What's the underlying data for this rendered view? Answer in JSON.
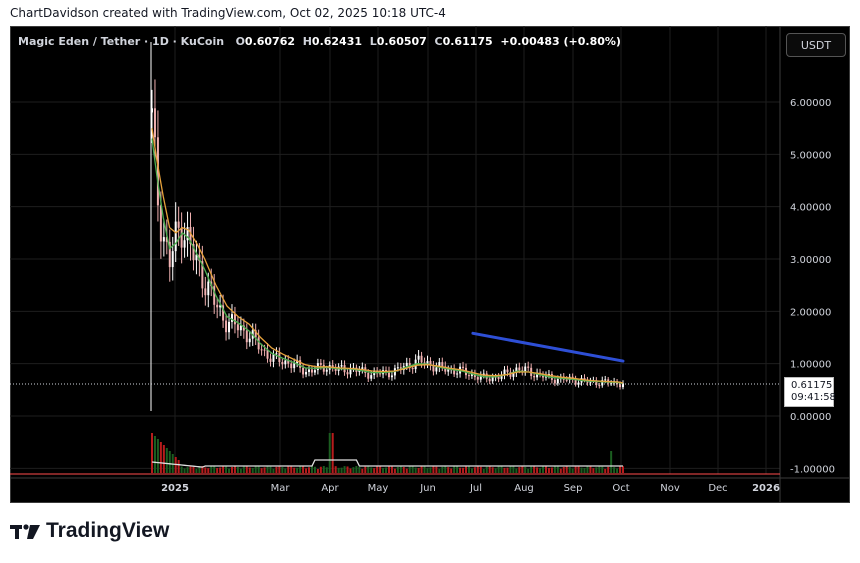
{
  "caption": "ChartDavidson created with TradingView.com, Oct 02, 2025 10:18 UTC-4",
  "legend": {
    "symbol": "Magic Eden / Tether · 1D · KuCoin",
    "open_label": "O",
    "open": "0.60762",
    "high_label": "H",
    "high": "0.62431",
    "low_label": "L",
    "low": "0.60507",
    "close_label": "C",
    "close": "0.61175",
    "change": "+0.00483 (+0.80%)"
  },
  "currency_button": "USDT",
  "last_price": {
    "price": "0.61175",
    "countdown": "09:41:58"
  },
  "brand": {
    "name": "TradingView"
  },
  "colors": {
    "background": "#000000",
    "candle_up": "#ffffff",
    "candle_down": "#f0b0b0",
    "ma_fast": "#4caf50",
    "ma_slow": "#e6a23c",
    "trendline": "#2e4fd6",
    "volume_down": "#b71c1c",
    "volume_up": "#1b5e20",
    "volume_ma": "#e0e0e0",
    "panel_separator": "#ff4d4d"
  },
  "chart_data": {
    "type": "candlestick",
    "xlabels": [
      "2025",
      "Mar",
      "Apr",
      "May",
      "Jun",
      "Jul",
      "Aug",
      "Sep",
      "Oct",
      "Nov",
      "Dec",
      "2026"
    ],
    "ylabels": [
      "6.00000",
      "5.00000",
      "4.00000",
      "3.00000",
      "2.00000",
      "1.00000",
      "0.00000",
      "-1.00000"
    ],
    "ylim": [
      -1,
      6.5
    ],
    "price_series": {
      "dates": [
        "Dec 11",
        "Dec 14",
        "Dec 18",
        "Dec 22",
        "Dec 26",
        "Dec 30",
        "Jan 03",
        "Jan 08",
        "Jan 13",
        "Jan 20",
        "Jan 27",
        "Feb 03",
        "Feb 10",
        "Feb 17",
        "Feb 24",
        "Mar 03",
        "Mar 10",
        "Mar 17",
        "Mar 24",
        "Mar 31",
        "Apr 07",
        "Apr 14",
        "Apr 21",
        "Apr 28",
        "May 05",
        "May 12",
        "May 19",
        "May 26",
        "Jun 02",
        "Jun 09",
        "Jun 16",
        "Jun 23",
        "Jun 30",
        "Jul 07",
        "Jul 14",
        "Jul 21",
        "Jul 28",
        "Aug 04",
        "Aug 11",
        "Aug 18",
        "Aug 25",
        "Sep 01",
        "Sep 08",
        "Sep 15",
        "Sep 22",
        "Sep 29",
        "Oct 02"
      ],
      "close": [
        5.6,
        4.3,
        3.5,
        2.9,
        3.4,
        3.7,
        3.3,
        2.9,
        2.6,
        2.1,
        1.8,
        1.7,
        1.55,
        1.3,
        1.1,
        1.05,
        0.98,
        0.85,
        0.9,
        0.95,
        0.88,
        0.9,
        0.85,
        0.8,
        0.82,
        0.85,
        0.95,
        1.05,
        1.0,
        0.92,
        0.88,
        0.85,
        0.78,
        0.72,
        0.74,
        0.8,
        0.9,
        0.85,
        0.78,
        0.72,
        0.7,
        0.69,
        0.66,
        0.65,
        0.64,
        0.63,
        0.61175
      ]
    },
    "moving_averages": [
      {
        "values": [
          5.3,
          4.6,
          3.8,
          3.2,
          3.3,
          3.5,
          3.4,
          3.1,
          2.8,
          2.3,
          1.9,
          1.78,
          1.62,
          1.38,
          1.2,
          1.1,
          1.02,
          0.92,
          0.91,
          0.93,
          0.9,
          0.9,
          0.87,
          0.83,
          0.83,
          0.85,
          0.93,
          1.0,
          0.99,
          0.93,
          0.89,
          0.86,
          0.8,
          0.75,
          0.75,
          0.79,
          0.86,
          0.84,
          0.79,
          0.74,
          0.72,
          0.7,
          0.67,
          0.66,
          0.65,
          0.64,
          0.62
        ]
      },
      {
        "values": [
          5.5,
          4.9,
          4.2,
          3.6,
          3.5,
          3.6,
          3.55,
          3.3,
          3.0,
          2.5,
          2.1,
          1.9,
          1.75,
          1.5,
          1.3,
          1.18,
          1.08,
          0.98,
          0.94,
          0.94,
          0.92,
          0.91,
          0.89,
          0.86,
          0.85,
          0.86,
          0.91,
          0.97,
          0.98,
          0.95,
          0.91,
          0.88,
          0.83,
          0.78,
          0.77,
          0.79,
          0.84,
          0.84,
          0.81,
          0.77,
          0.74,
          0.72,
          0.69,
          0.67,
          0.66,
          0.65,
          0.63
        ]
      }
    ],
    "trendline": {
      "start": {
        "date": "Jun 30",
        "price": 1.58
      },
      "end": {
        "date": "Oct 02",
        "price": 1.05
      }
    },
    "last_price": 0.61175
  }
}
